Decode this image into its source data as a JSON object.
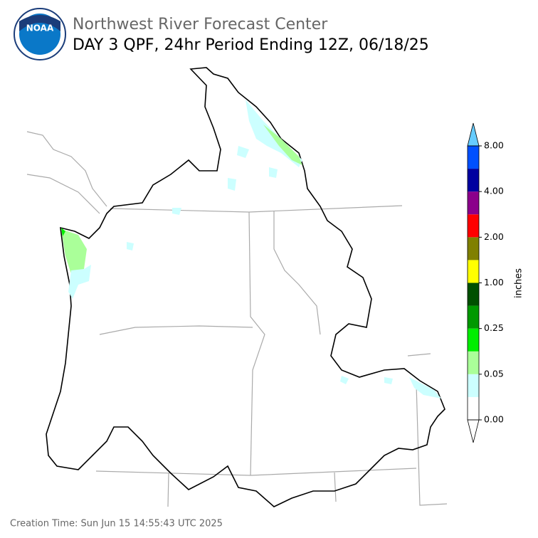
{
  "header": {
    "title": "Northwest River Forecast Center",
    "subtitle": "DAY 3 QPF, 24hr Period Ending 12Z, 06/18/25"
  },
  "logo": {
    "text": "NOAA"
  },
  "colorbar": {
    "label": "inches",
    "colors": [
      "#ffffff",
      "#ccffff",
      "#aaff99",
      "#00ee00",
      "#009900",
      "#005000",
      "#ffff00",
      "#808000",
      "#ff0000",
      "#8b008b",
      "#0000a0",
      "#0050ff"
    ],
    "under_color": "#ffffff",
    "over_color": "#66ccff",
    "ticks": [
      {
        "value": 0,
        "label": "0.00"
      },
      {
        "value": 0.05,
        "label": "0.05"
      },
      {
        "value": 0.25,
        "label": "0.25"
      },
      {
        "value": 1,
        "label": "1.00"
      },
      {
        "value": 2,
        "label": "2.00"
      },
      {
        "value": 4,
        "label": "4.00"
      },
      {
        "value": 8,
        "label": "8.00"
      }
    ]
  },
  "footer": "Creation Time: Sun Jun 15 14:55:43 UTC 2025"
}
